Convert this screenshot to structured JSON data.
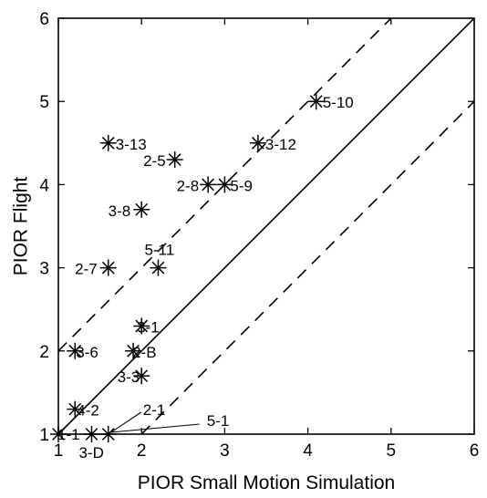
{
  "chart_data": {
    "type": "scatter",
    "title": "",
    "xlabel": "PIOR Small Motion Simulation",
    "ylabel": "PIOR Flight",
    "xlim": [
      1,
      6
    ],
    "ylim": [
      1,
      6
    ],
    "xticks": [
      "1",
      "2",
      "3",
      "4",
      "5",
      "6"
    ],
    "yticks": [
      "1",
      "2",
      "3",
      "4",
      "5",
      "6"
    ],
    "grid": false,
    "marker": "asterisk",
    "reference_lines": [
      {
        "style": "solid",
        "slope": 1,
        "intercept": 0
      },
      {
        "style": "dashed",
        "slope": 1,
        "intercept": 1
      },
      {
        "style": "dashed",
        "slope": 1,
        "intercept": -1
      }
    ],
    "points": [
      {
        "label": "5-10",
        "x": 4.1,
        "y": 5.0
      },
      {
        "label": "3-13",
        "x": 1.6,
        "y": 4.5
      },
      {
        "label": "3-12",
        "x": 3.4,
        "y": 4.5
      },
      {
        "label": "2-5",
        "x": 2.4,
        "y": 4.3
      },
      {
        "label": "2-8",
        "x": 2.8,
        "y": 4.0
      },
      {
        "label": "5-9",
        "x": 3.0,
        "y": 4.0
      },
      {
        "label": "3-8",
        "x": 2.0,
        "y": 3.7
      },
      {
        "label": "2-7",
        "x": 1.6,
        "y": 3.0
      },
      {
        "label": "5-11",
        "x": 2.2,
        "y": 3.0
      },
      {
        "label": "3-1",
        "x": 2.0,
        "y": 2.3
      },
      {
        "label": "3-6",
        "x": 1.2,
        "y": 2.0
      },
      {
        "label": "2-B",
        "x": 1.9,
        "y": 2.0
      },
      {
        "label": "3-3",
        "x": 2.0,
        "y": 1.7
      },
      {
        "label": "4-2",
        "x": 1.2,
        "y": 1.3
      },
      {
        "label": "1-1",
        "x": 1.0,
        "y": 1.0
      },
      {
        "label": "3-D",
        "x": 1.4,
        "y": 1.0
      },
      {
        "label": "2-1",
        "x": 1.6,
        "y": 1.0
      },
      {
        "label": "5-1",
        "x": 1.6,
        "y": 1.0
      }
    ]
  }
}
